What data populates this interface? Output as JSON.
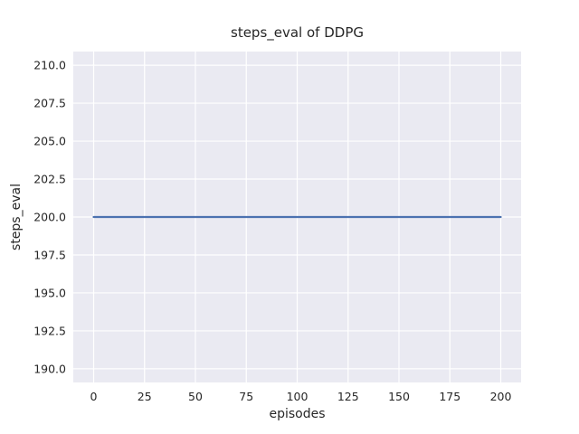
{
  "figure": {
    "background": "#ffffff"
  },
  "chart_data": {
    "type": "line",
    "title": "steps_eval of DDPG",
    "xlabel": "episodes",
    "ylabel": "steps_eval",
    "xlim": [
      -10,
      210
    ],
    "ylim": [
      189.1,
      210.9
    ],
    "grid": true,
    "legend": false,
    "style": "seaborn-darkgrid",
    "axes_background": "#eaeaf2",
    "grid_color": "#ffffff",
    "text_color": "#262626",
    "xticks": {
      "values": [
        0,
        25,
        50,
        75,
        100,
        125,
        150,
        175,
        200
      ],
      "labels": [
        "0",
        "25",
        "50",
        "75",
        "100",
        "125",
        "150",
        "175",
        "200"
      ]
    },
    "yticks": {
      "values": [
        190.0,
        192.5,
        195.0,
        197.5,
        200.0,
        202.5,
        205.0,
        207.5,
        210.0
      ],
      "labels": [
        "190.0",
        "192.5",
        "195.0",
        "197.5",
        "200.0",
        "202.5",
        "205.0",
        "207.5",
        "210.0"
      ]
    },
    "series": [
      {
        "name": "DDPG",
        "color": "#4c72b0",
        "line_width": 2.2,
        "x": [
          0,
          200
        ],
        "y": [
          200,
          200
        ]
      }
    ]
  }
}
